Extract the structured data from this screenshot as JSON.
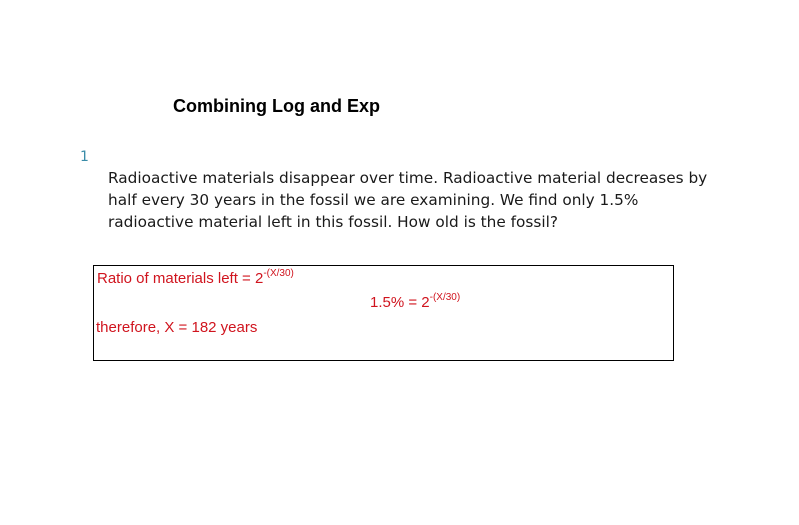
{
  "title": "Combining Log and Exp",
  "question": {
    "number": "1",
    "text": "Radioactive materials disappear over time. Radioactive material decreases by half every 30 years in the fossil we are examining. We find only 1.5% radioactive material left in this fossil. How old is the fossil?"
  },
  "answer": {
    "line1_base": "Ratio of materials left = 2",
    "line1_exp": "-(X/30)",
    "line2_base": "1.5% = 2",
    "line2_exp": "-(X/30)",
    "line3": "therefore, X = 182 years"
  },
  "colors": {
    "answer_ink": "#d0141e",
    "question_number": "#3a8ca8"
  }
}
